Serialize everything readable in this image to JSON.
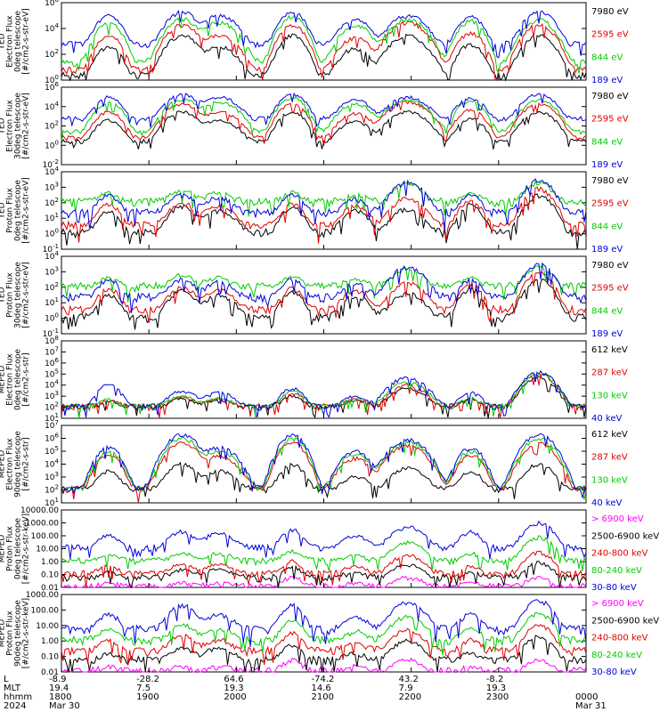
{
  "chart_data": [
    {
      "type": "line",
      "ylabel": [
        "TED",
        "Electron Flux",
        "0deg telescope",
        "[#/cm2-s-str-eV]"
      ],
      "scale": "log",
      "ylim": [
        1,
        1000000
      ],
      "ytick_labels": [
        "10^0",
        "10^2",
        "10^4",
        "10^6"
      ],
      "series": [
        {
          "name": "7980 eV",
          "color": "#000000",
          "baseline": 2,
          "peaks": [
            400,
            3000,
            400,
            3000,
            300,
            3000,
            600,
            3000
          ]
        },
        {
          "name": "2595 eV",
          "color": "#e00000",
          "baseline": 5,
          "peaks": [
            3000,
            20000,
            3000,
            20000,
            2000,
            30000,
            5000,
            20000
          ]
        },
        {
          "name": "844 eV",
          "color": "#00cc00",
          "baseline": 20,
          "peaks": [
            30000,
            60000,
            30000,
            90000,
            20000,
            50000,
            40000,
            50000
          ]
        },
        {
          "name": "189 eV",
          "color": "#0000dd",
          "baseline": 500,
          "peaks": [
            100000,
            200000,
            100000,
            200000,
            50000,
            100000,
            80000,
            200000
          ]
        }
      ]
    },
    {
      "type": "line",
      "ylabel": [
        "TED",
        "Electron Flux",
        "30deg telescope",
        "[#/cm2-s-str-eV]"
      ],
      "scale": "log",
      "ylim": [
        0.01,
        1000000
      ],
      "ytick_labels": [
        "10^-2",
        "10^0",
        "10^2",
        "10^4",
        "10^6"
      ],
      "series": [
        {
          "name": "7980 eV",
          "color": "#000000",
          "baseline": 2,
          "peaks": [
            400,
            3000,
            400,
            3000,
            300,
            3000,
            600,
            3000
          ]
        },
        {
          "name": "2595 eV",
          "color": "#e00000",
          "baseline": 5,
          "peaks": [
            3000,
            20000,
            3000,
            20000,
            2000,
            30000,
            5000,
            20000
          ]
        },
        {
          "name": "844 eV",
          "color": "#00cc00",
          "baseline": 20,
          "peaks": [
            30000,
            60000,
            30000,
            90000,
            20000,
            50000,
            40000,
            50000
          ]
        },
        {
          "name": "189 eV",
          "color": "#0000dd",
          "baseline": 500,
          "peaks": [
            100000,
            200000,
            100000,
            200000,
            50000,
            100000,
            80000,
            200000
          ]
        }
      ]
    },
    {
      "type": "line",
      "ylabel": [
        "TED",
        "Proton Flux",
        "0deg telescope",
        "[#/cm2-s-str-eV]"
      ],
      "scale": "log",
      "ylim": [
        0.1,
        10000
      ],
      "ytick_labels": [
        "10^-1",
        "10^0",
        "10^1",
        "10^2",
        "10^3",
        "10^4"
      ],
      "series": [
        {
          "name": "7980 eV",
          "color": "#000000",
          "baseline": 1,
          "peaks": [
            30,
            60,
            30,
            50,
            30,
            40,
            80,
            300
          ]
        },
        {
          "name": "2595 eV",
          "color": "#e00000",
          "baseline": 3,
          "peaks": [
            80,
            100,
            60,
            80,
            60,
            200,
            150,
            800
          ]
        },
        {
          "name": "844 eV",
          "color": "#00cc00",
          "baseline": 100,
          "peaks": [
            300,
            500,
            300,
            400,
            200,
            1500,
            300,
            2000
          ]
        },
        {
          "name": "189 eV",
          "color": "#0000dd",
          "baseline": 20,
          "peaks": [
            300,
            300,
            200,
            300,
            150,
            2000,
            300,
            3000
          ]
        }
      ]
    },
    {
      "type": "line",
      "ylabel": [
        "TED",
        "Proton Flux",
        "30deg telescope",
        "[#/cm2-s-str-eV]"
      ],
      "scale": "log",
      "ylim": [
        0.1,
        10000
      ],
      "ytick_labels": [
        "10^-1",
        "10^0",
        "10^1",
        "10^2",
        "10^3",
        "10^4"
      ],
      "series": [
        {
          "name": "7980 eV",
          "color": "#000000",
          "baseline": 1,
          "peaks": [
            30,
            60,
            30,
            50,
            30,
            40,
            80,
            300
          ]
        },
        {
          "name": "2595 eV",
          "color": "#e00000",
          "baseline": 3,
          "peaks": [
            80,
            100,
            60,
            80,
            60,
            200,
            150,
            800
          ]
        },
        {
          "name": "844 eV",
          "color": "#00cc00",
          "baseline": 100,
          "peaks": [
            300,
            500,
            300,
            400,
            200,
            1500,
            300,
            2000
          ]
        },
        {
          "name": "189 eV",
          "color": "#0000dd",
          "baseline": 20,
          "peaks": [
            300,
            300,
            200,
            300,
            150,
            2000,
            300,
            3000
          ]
        }
      ]
    },
    {
      "type": "line",
      "ylabel": [
        "MEPED",
        "Electron Flux",
        "0deg telescope",
        "[#/cm2-s-str]"
      ],
      "scale": "log",
      "ylim": [
        10,
        100000000
      ],
      "ytick_labels": [
        "10^1",
        "10^2",
        "10^3",
        "10^4",
        "10^5",
        "10^6",
        "10^7",
        "10^8"
      ],
      "series": [
        {
          "name": "612 keV",
          "color": "#000000",
          "baseline": 100,
          "peaks": [
            200,
            500,
            300,
            1000,
            300,
            5000,
            400,
            50000
          ]
        },
        {
          "name": "287 keV",
          "color": "#e00000",
          "baseline": 100,
          "peaks": [
            300,
            800,
            400,
            2000,
            400,
            10000,
            500,
            100000
          ]
        },
        {
          "name": "130 keV",
          "color": "#00cc00",
          "baseline": 100,
          "peaks": [
            400,
            900,
            500,
            3000,
            500,
            20000,
            600,
            100000
          ]
        },
        {
          "name": "40 keV",
          "color": "#0000dd",
          "baseline": 100,
          "peaks": [
            10000,
            3000,
            2000,
            5000,
            1000,
            50000,
            2000,
            150000
          ]
        }
      ]
    },
    {
      "type": "line",
      "ylabel": [
        "MEPED",
        "Electron Flux",
        "90deg telescope",
        "[#/cm2-s-str]"
      ],
      "scale": "log",
      "ylim": [
        10,
        10000000
      ],
      "ytick_labels": [
        "10^1",
        "10^2",
        "10^3",
        "10^4",
        "10^5",
        "10^6",
        "10^7"
      ],
      "series": [
        {
          "name": "612 keV",
          "color": "#000000",
          "baseline": 100,
          "peaks": [
            3000,
            10000,
            3000,
            10000,
            1000,
            5000,
            3000,
            10000
          ]
        },
        {
          "name": "287 keV",
          "color": "#e00000",
          "baseline": 100,
          "peaks": [
            50000,
            500000,
            50000,
            500000,
            30000,
            300000,
            50000,
            500000
          ]
        },
        {
          "name": "130 keV",
          "color": "#00cc00",
          "baseline": 100,
          "peaks": [
            100000,
            1000000,
            100000,
            1000000,
            60000,
            500000,
            100000,
            1000000
          ]
        },
        {
          "name": "40 keV",
          "color": "#0000dd",
          "baseline": 100,
          "peaks": [
            200000,
            2000000,
            200000,
            2000000,
            100000,
            800000,
            200000,
            2000000
          ]
        }
      ]
    },
    {
      "type": "line",
      "ylabel": [
        "MEPED",
        "Proton Flux",
        "0deg telescope",
        "[#/cm2-s-str-keV]"
      ],
      "scale": "log",
      "ylim": [
        0.01,
        10000
      ],
      "ytick_labels": [
        "0.01",
        "0.10",
        "1.00",
        "10.00",
        "100.00",
        "1000.00",
        "10000.00"
      ],
      "series": [
        {
          "name": "> 6900 keV",
          "color": "#ff00ff",
          "baseline": 0.01,
          "peaks": [
            0.01,
            0.01,
            0.01,
            0.05,
            0.01,
            0.05,
            0.01,
            0.05
          ]
        },
        {
          "name": "2500-6900 keV",
          "color": "#000000",
          "baseline": 0.05,
          "peaks": [
            0.1,
            0.2,
            0.2,
            0.3,
            0.1,
            0.5,
            0.1,
            0.8
          ]
        },
        {
          "name": "240-800 keV",
          "color": "#e00000",
          "baseline": 0.1,
          "peaks": [
            0.3,
            0.5,
            0.5,
            1,
            0.3,
            3,
            0.3,
            5
          ]
        },
        {
          "name": "80-240 keV",
          "color": "#00cc00",
          "baseline": 1,
          "peaks": [
            2,
            3,
            3,
            5,
            2,
            30,
            3,
            80
          ]
        },
        {
          "name": "30-80 keV",
          "color": "#0000dd",
          "baseline": 10,
          "peaks": [
            100,
            200,
            150,
            300,
            100,
            500,
            200,
            1000
          ]
        }
      ]
    },
    {
      "type": "line",
      "ylabel": [
        "MEPED",
        "Proton Flux",
        "90deg telescope",
        "[#/cm2-s-str-keV]"
      ],
      "scale": "log",
      "ylim": [
        0.01,
        1000
      ],
      "ytick_labels": [
        "0.01",
        "0.10",
        "1.00",
        "10.00",
        "100.00",
        "1000.00"
      ],
      "series": [
        {
          "name": "> 6900 keV",
          "color": "#ff00ff",
          "baseline": 0.01,
          "peaks": [
            0.01,
            0.01,
            0.01,
            0.05,
            0.01,
            0.05,
            0.01,
            0.05
          ]
        },
        {
          "name": "2500-6900 keV",
          "color": "#000000",
          "baseline": 0.05,
          "peaks": [
            0.1,
            0.3,
            0.3,
            0.5,
            0.1,
            1,
            0.1,
            2
          ]
        },
        {
          "name": "240-800 keV",
          "color": "#e00000",
          "baseline": 0.2,
          "peaks": [
            1,
            2,
            1,
            3,
            0.5,
            5,
            1,
            10
          ]
        },
        {
          "name": "80-240 keV",
          "color": "#00cc00",
          "baseline": 1,
          "peaks": [
            5,
            10,
            5,
            20,
            3,
            40,
            5,
            60
          ]
        },
        {
          "name": "30-80 keV",
          "color": "#0000dd",
          "baseline": 5,
          "peaks": [
            50,
            200,
            50,
            200,
            30,
            300,
            50,
            400
          ]
        }
      ]
    }
  ],
  "x_axis": {
    "row_labels": [
      "L",
      "MLT",
      "hhmm",
      "2024"
    ],
    "ticks": [
      {
        "L": "-8.9",
        "MLT": "19.4",
        "hhmm": "1800",
        "date": "Mar 30"
      },
      {
        "L": "-28.2",
        "MLT": "7.5",
        "hhmm": "1900",
        "date": ""
      },
      {
        "L": "64.6",
        "MLT": "19.3",
        "hhmm": "2000",
        "date": ""
      },
      {
        "L": "-74.2",
        "MLT": "14.6",
        "hhmm": "2100",
        "date": ""
      },
      {
        "L": "43.2",
        "MLT": "7.9",
        "hhmm": "2200",
        "date": ""
      },
      {
        "L": "-8.2",
        "MLT": "19.3",
        "hhmm": "2300",
        "date": ""
      },
      {
        "L": "",
        "MLT": "",
        "hhmm": "0000",
        "date": "Mar 31"
      }
    ],
    "range_hours": [
      18,
      24
    ]
  }
}
